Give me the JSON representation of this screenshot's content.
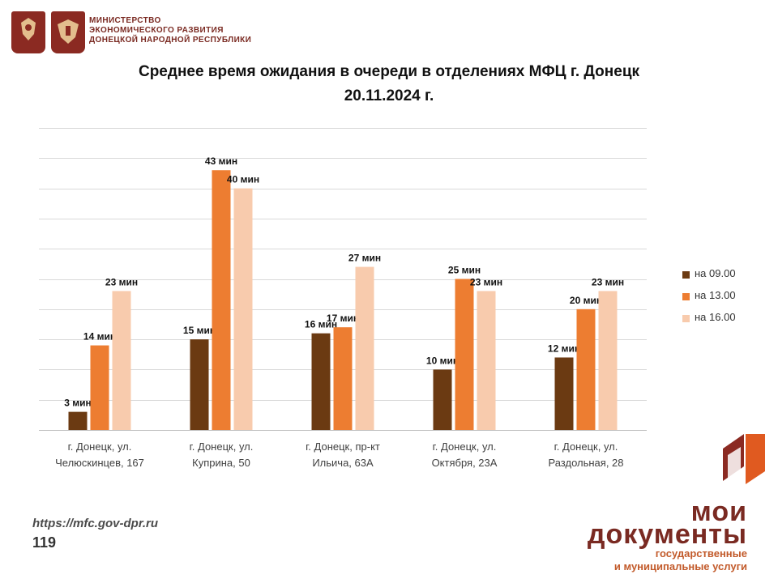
{
  "header": {
    "ministry_lines": [
      "МИНИСТЕРСТВО",
      "ЭКОНОМИЧЕСКОГО РАЗВИТИЯ",
      "ДОНЕЦКОЙ НАРОДНОЙ РЕСПУБЛИКИ"
    ]
  },
  "colors": {
    "series": [
      "#6b3a12",
      "#ed7d31",
      "#f8cbad"
    ],
    "grid": "#d9d9d9",
    "brand": "#7a2a22",
    "brand_accent": "#e05a20"
  },
  "chart_data": {
    "type": "bar",
    "title": "Среднее время ожидания в очереди в отделениях МФЦ г. Донецк 20.11.2024 г.",
    "title_lines": [
      "Среднее время ожидания в очереди в отделениях МФЦ г. Донецк",
      "20.11.2024 г."
    ],
    "categories": [
      [
        "г. Донецк, ул.",
        "Челюскинцев, 167"
      ],
      [
        "г. Донецк, ул.",
        "Куприна, 50"
      ],
      [
        "г. Донецк, пр-кт",
        "Ильича, 63А"
      ],
      [
        "г. Донецк, ул.",
        "Октября, 23А"
      ],
      [
        "г. Донецк, ул.",
        "Раздольная, 28"
      ]
    ],
    "series": [
      {
        "name": "на 09.00",
        "values": [
          3,
          15,
          16,
          10,
          12
        ],
        "labels": [
          "3 мин",
          "15 мин",
          "16 мин",
          "10 мин",
          "12 мин"
        ]
      },
      {
        "name": "на 13.00",
        "values": [
          14,
          43,
          17,
          25,
          20
        ],
        "labels": [
          "14 мин",
          "43 мин",
          "17 мин",
          "25 мин",
          "20 мин"
        ]
      },
      {
        "name": "на 16.00",
        "values": [
          23,
          40,
          27,
          23,
          23
        ],
        "labels": [
          "23 мин",
          "40 мин",
          "27 мин",
          "23 мин",
          "23 мин"
        ]
      }
    ],
    "ylim": [
      0,
      50
    ],
    "grid": true,
    "legend_position": "right",
    "xlabel": "",
    "ylabel": ""
  },
  "footer": {
    "url": "https://mfc.gov-dpr.ru",
    "page_number": "119"
  },
  "brand": {
    "line1": "мои",
    "line2": "документы",
    "sub_lines": [
      "государственные",
      "и муниципальные услуги"
    ]
  }
}
